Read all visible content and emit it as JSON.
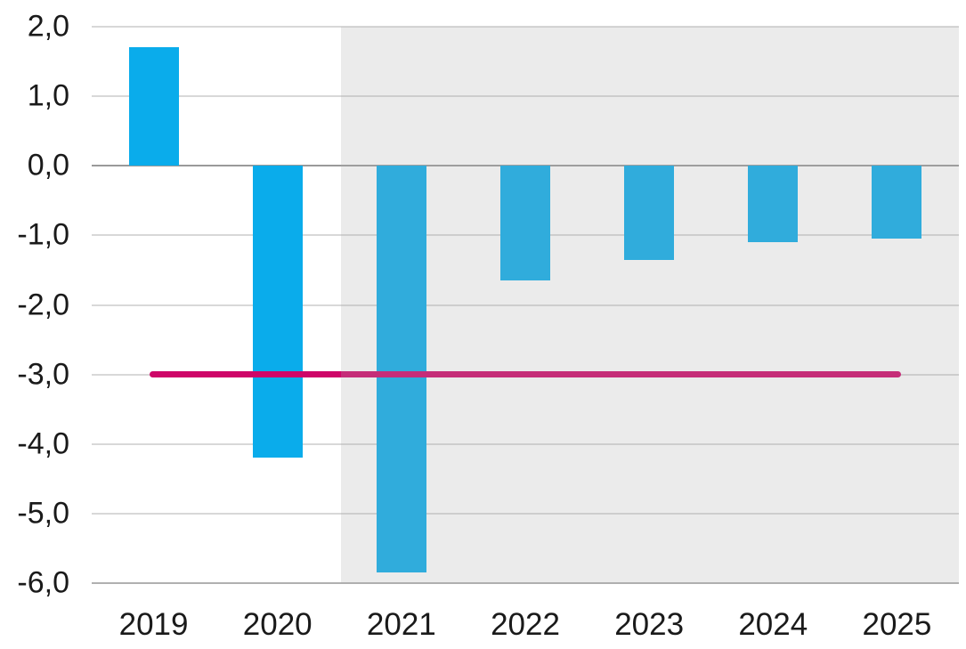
{
  "chart_data": {
    "type": "bar",
    "title": "",
    "xlabel": "",
    "ylabel": "",
    "categories": [
      "2019",
      "2020",
      "2021",
      "2022",
      "2023",
      "2024",
      "2025"
    ],
    "series": [
      {
        "name": "balance-bars",
        "type": "bar",
        "values": [
          1.7,
          -4.2,
          -5.85,
          -1.65,
          -1.35,
          -1.1,
          -1.05
        ],
        "color": "#0aaceb"
      },
      {
        "name": "reference-line-minus-3",
        "type": "line",
        "values": [
          -3.0,
          -3.0,
          -3.0,
          -3.0,
          -3.0,
          -3.0,
          -3.0
        ],
        "color": "#ce0668"
      }
    ],
    "ylim": [
      -6.0,
      2.0
    ],
    "ytick_step": 1.0,
    "ytick_labels": [
      "2,0",
      "1,0",
      "0,0",
      "-1,0",
      "-2,0",
      "-3,0",
      "-4,0",
      "-5,0",
      "-6,0"
    ],
    "xtick_labels": [
      "2019",
      "2020",
      "2021",
      "2022",
      "2023",
      "2024",
      "2025"
    ],
    "decimal_separator": ",",
    "grid": true,
    "legend": false,
    "shaded_region": {
      "start_category": "2021",
      "extends_to": "right-edge",
      "overlay_color": "rgba(170,170,170,0.24)"
    },
    "colors": {
      "bar": "#0aaceb",
      "reference_line": "#ce0668",
      "gridline": "#d8d8d8",
      "zero_line": "#9a9a9a",
      "bottom_line": "#b0b0b0",
      "tick_text": "#1a1a1a",
      "background": "#ffffff"
    }
  }
}
